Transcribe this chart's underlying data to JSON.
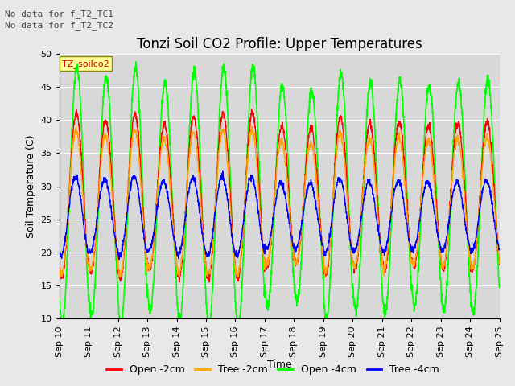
{
  "title": "Tonzi Soil CO2 Profile: Upper Temperatures",
  "ylabel": "Soil Temperature (C)",
  "xlabel": "Time",
  "annotations": [
    "No data for f_T2_TC1",
    "No data for f_T2_TC2"
  ],
  "legend_label": "TZ_soilco2",
  "series_labels": [
    "Open -2cm",
    "Tree -2cm",
    "Open -4cm",
    "Tree -4cm"
  ],
  "series_colors": [
    "#ff0000",
    "#ffa500",
    "#00ff00",
    "#0000ff"
  ],
  "xlim_start": 10,
  "xlim_end": 25,
  "ylim": [
    10,
    50
  ],
  "yticks": [
    10,
    15,
    20,
    25,
    30,
    35,
    40,
    45,
    50
  ],
  "xtick_labels": [
    "Sep 10",
    "Sep 11",
    "Sep 12",
    "Sep 13",
    "Sep 14",
    "Sep 15",
    "Sep 16",
    "Sep 17",
    "Sep 18",
    "Sep 19",
    "Sep 20",
    "Sep 21",
    "Sep 22",
    "Sep 23",
    "Sep 24",
    "Sep 25"
  ],
  "fig_bg_color": "#e8e8e8",
  "plot_bg_color": "#d8d8d8",
  "grid_color": "#ffffff",
  "title_fontsize": 12,
  "axis_fontsize": 9,
  "tick_fontsize": 8,
  "annotation_fontsize": 8,
  "annotation_color": "#444444"
}
